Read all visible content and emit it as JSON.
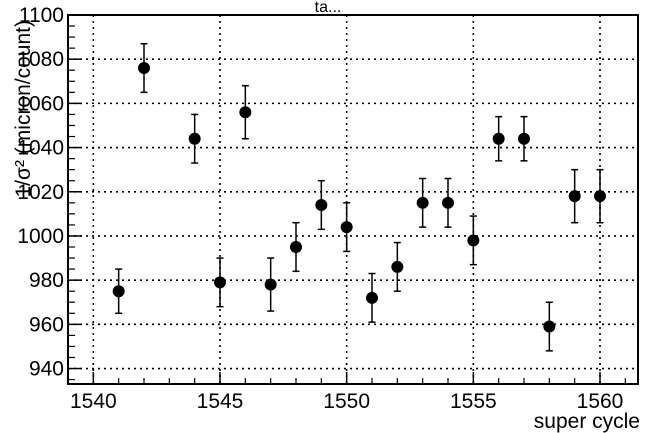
{
  "chart_data": {
    "type": "scatter",
    "title": "",
    "top_label": "ta...",
    "xlabel": "super cycle",
    "ylabel": "1/σ² (micron/count)",
    "xlim": [
      1539,
      1561.5
    ],
    "ylim": [
      933,
      1100
    ],
    "x_ticks": [
      1540,
      1545,
      1550,
      1555,
      1560
    ],
    "y_ticks": [
      940,
      960,
      980,
      1000,
      1020,
      1040,
      1060,
      1080,
      1100
    ],
    "grid": true,
    "marker_color": "#000000",
    "series": [
      {
        "points": [
          {
            "x": 1541,
            "y": 975,
            "err": 10
          },
          {
            "x": 1542,
            "y": 1076,
            "err": 11
          },
          {
            "x": 1544,
            "y": 1044,
            "err": 11
          },
          {
            "x": 1545,
            "y": 979,
            "err": 11
          },
          {
            "x": 1546,
            "y": 1056,
            "err": 12
          },
          {
            "x": 1547,
            "y": 978,
            "err": 12
          },
          {
            "x": 1548,
            "y": 995,
            "err": 11
          },
          {
            "x": 1549,
            "y": 1014,
            "err": 11
          },
          {
            "x": 1550,
            "y": 1004,
            "err": 11
          },
          {
            "x": 1551,
            "y": 972,
            "err": 11
          },
          {
            "x": 1552,
            "y": 986,
            "err": 11
          },
          {
            "x": 1553,
            "y": 1015,
            "err": 11
          },
          {
            "x": 1554,
            "y": 1015,
            "err": 11
          },
          {
            "x": 1555,
            "y": 998,
            "err": 11
          },
          {
            "x": 1556,
            "y": 1044,
            "err": 10
          },
          {
            "x": 1557,
            "y": 1044,
            "err": 10
          },
          {
            "x": 1558,
            "y": 959,
            "err": 11
          },
          {
            "x": 1559,
            "y": 1018,
            "err": 12
          },
          {
            "x": 1560,
            "y": 1018,
            "err": 12
          }
        ]
      }
    ]
  }
}
